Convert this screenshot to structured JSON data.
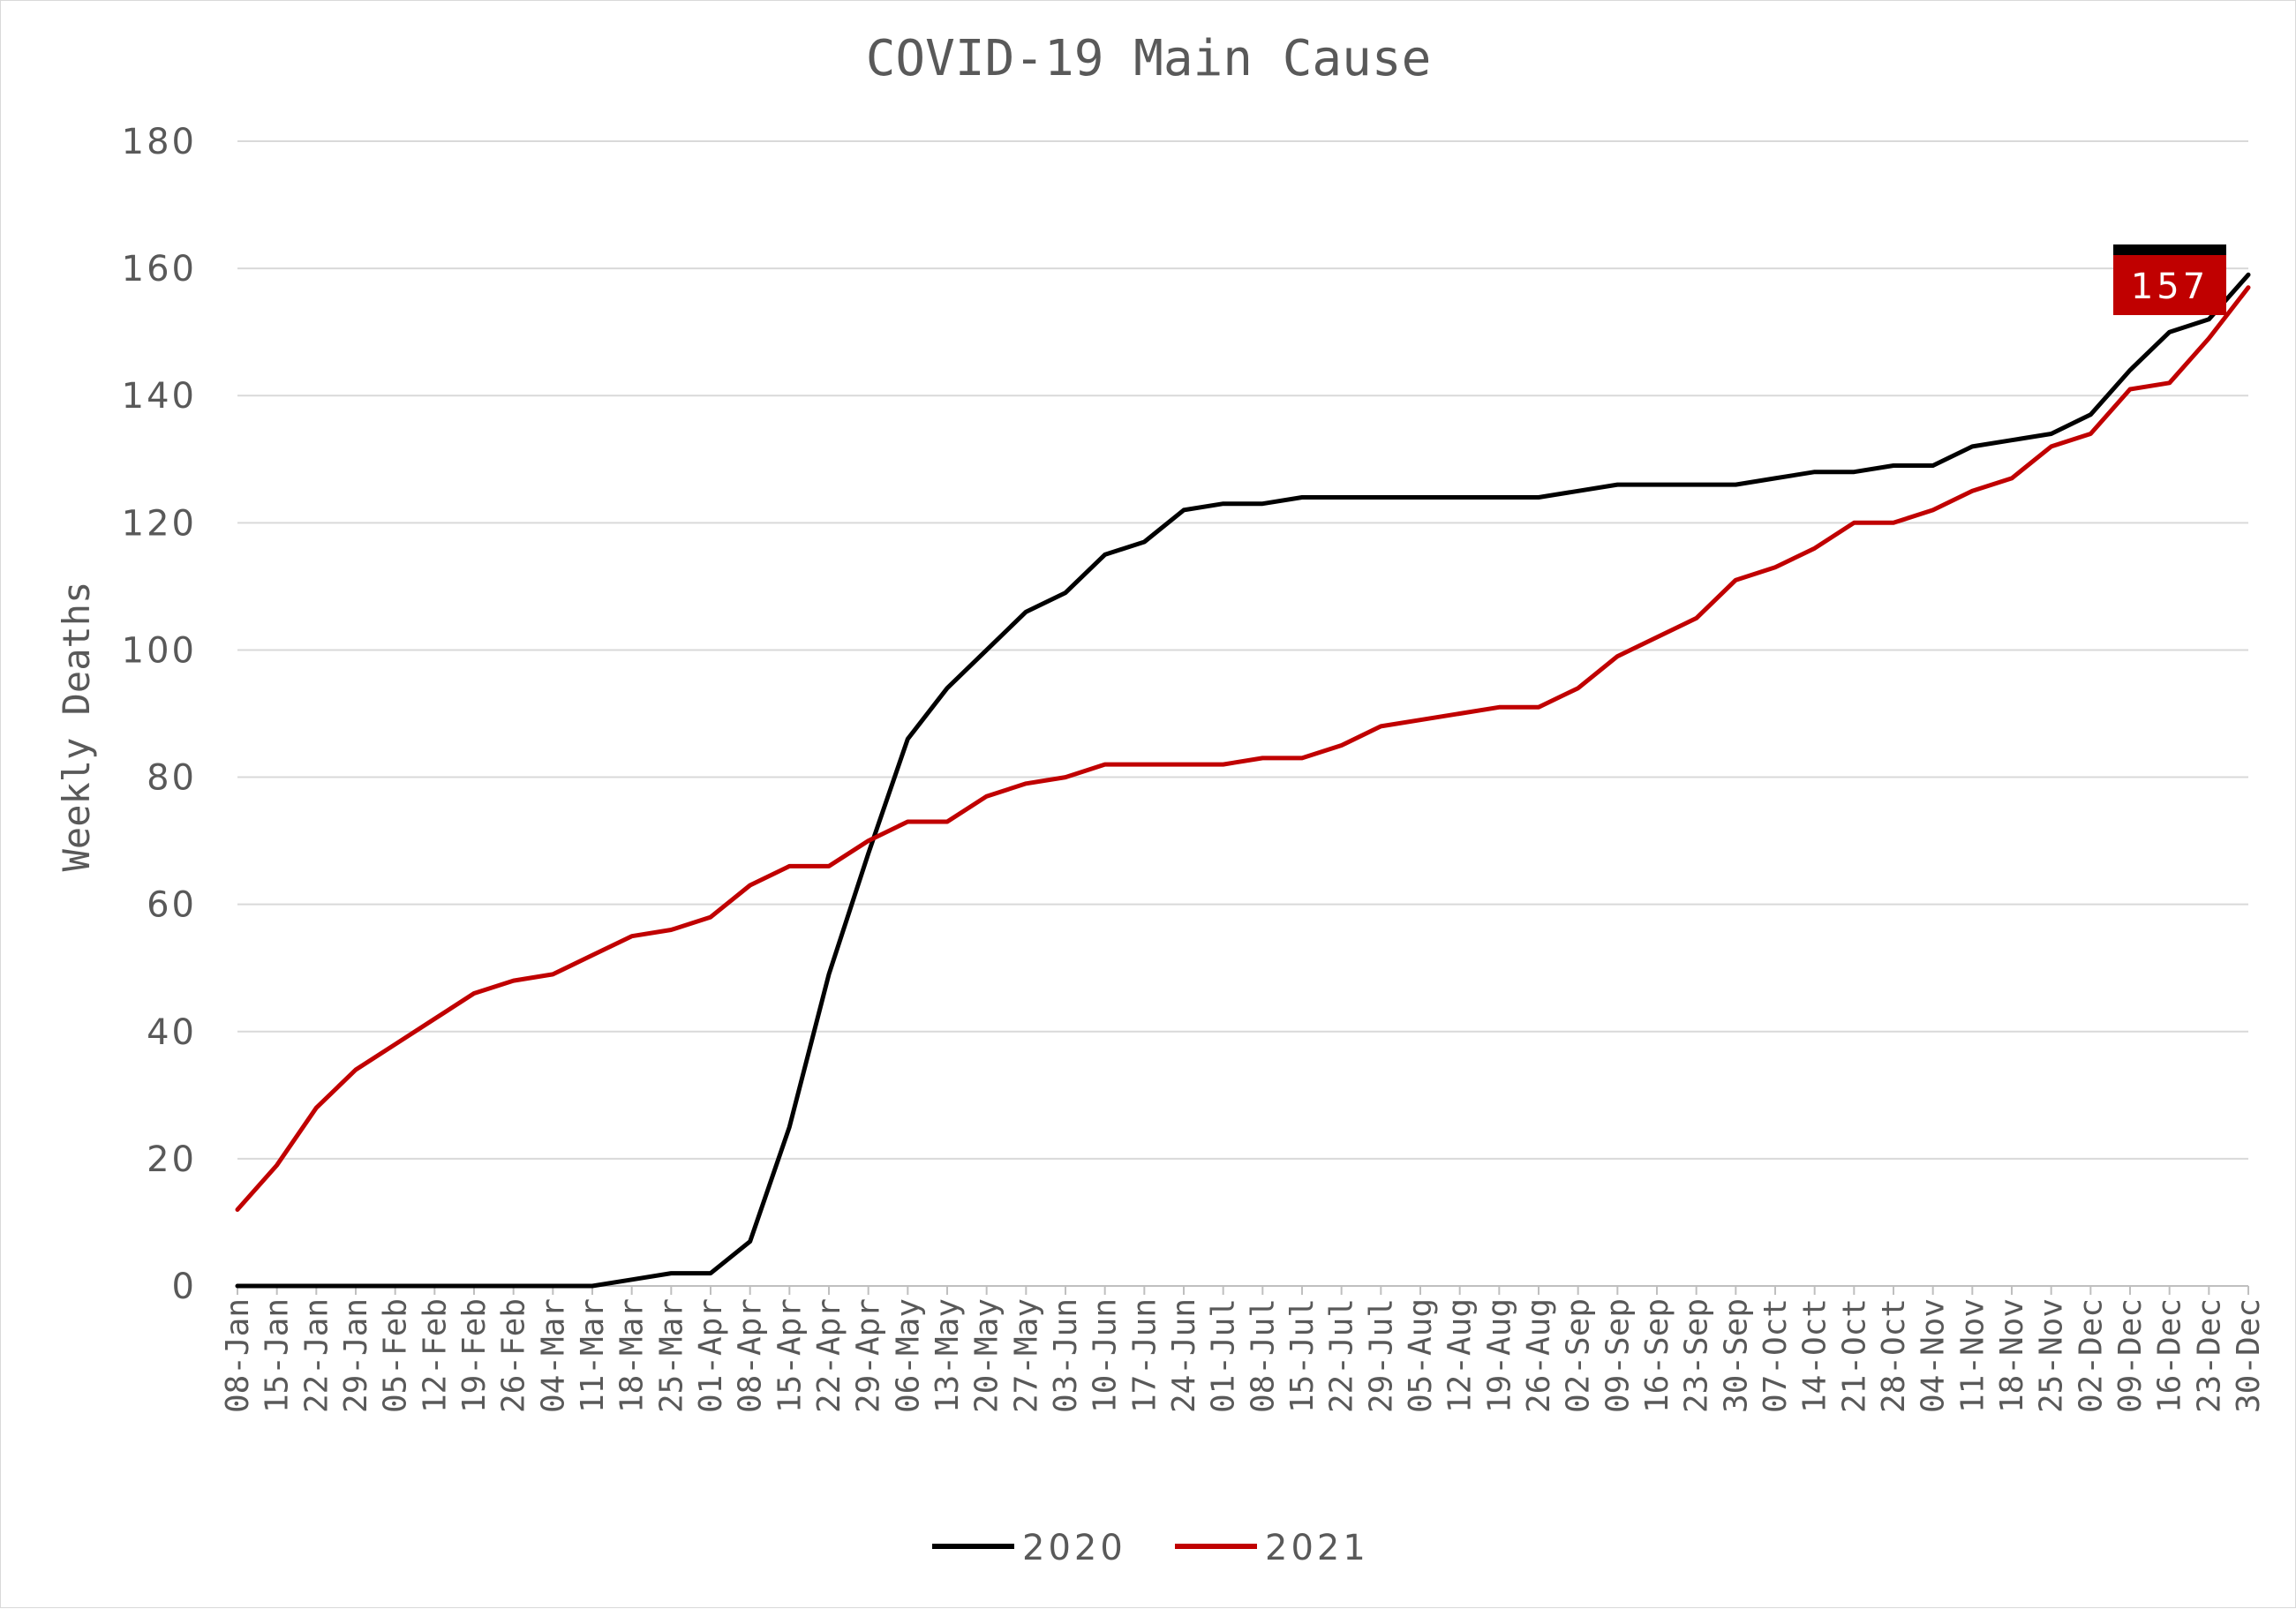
{
  "chart_data": {
    "type": "line",
    "title": "COVID-19 Main Cause",
    "xlabel": "",
    "ylabel": "Weekly Deaths",
    "ylim": [
      0,
      180
    ],
    "yticks": [
      0,
      20,
      40,
      60,
      80,
      100,
      120,
      140,
      160,
      180
    ],
    "grid": true,
    "legend": "bottom",
    "categories": [
      "08-Jan",
      "15-Jan",
      "22-Jan",
      "29-Jan",
      "05-Feb",
      "12-Feb",
      "19-Feb",
      "26-Feb",
      "04-Mar",
      "11-Mar",
      "18-Mar",
      "25-Mar",
      "01-Apr",
      "08-Apr",
      "15-Apr",
      "22-Apr",
      "29-Apr",
      "06-May",
      "13-May",
      "20-May",
      "27-May",
      "03-Jun",
      "10-Jun",
      "17-Jun",
      "24-Jun",
      "01-Jul",
      "08-Jul",
      "15-Jul",
      "22-Jul",
      "29-Jul",
      "05-Aug",
      "12-Aug",
      "19-Aug",
      "26-Aug",
      "02-Sep",
      "09-Sep",
      "16-Sep",
      "23-Sep",
      "30-Sep",
      "07-Oct",
      "14-Oct",
      "21-Oct",
      "28-Oct",
      "04-Nov",
      "11-Nov",
      "18-Nov",
      "25-Nov",
      "02-Dec",
      "09-Dec",
      "16-Dec",
      "23-Dec",
      "30-Dec"
    ],
    "series": [
      {
        "name": "2020",
        "color": "#000000",
        "values": [
          0,
          0,
          0,
          0,
          0,
          0,
          0,
          0,
          0,
          0,
          1,
          2,
          2,
          7,
          25,
          49,
          68,
          86,
          94,
          100,
          106,
          109,
          115,
          117,
          122,
          123,
          123,
          124,
          124,
          124,
          124,
          124,
          124,
          124,
          125,
          126,
          126,
          126,
          126,
          127,
          128,
          128,
          129,
          129,
          132,
          133,
          134,
          137,
          144,
          150,
          152,
          159
        ]
      },
      {
        "name": "2021",
        "color": "#c00000",
        "values": [
          12,
          19,
          28,
          34,
          38,
          42,
          46,
          48,
          49,
          52,
          55,
          56,
          58,
          63,
          66,
          66,
          70,
          73,
          73,
          77,
          79,
          80,
          82,
          82,
          82,
          82,
          83,
          83,
          85,
          88,
          89,
          90,
          91,
          91,
          94,
          99,
          102,
          105,
          111,
          113,
          116,
          120,
          120,
          122,
          125,
          127,
          132,
          134,
          141,
          142,
          149,
          157
        ]
      }
    ],
    "data_labels": [
      {
        "series": "2021",
        "category": "30-Dec",
        "value": "157",
        "color": "#c00000"
      }
    ]
  }
}
